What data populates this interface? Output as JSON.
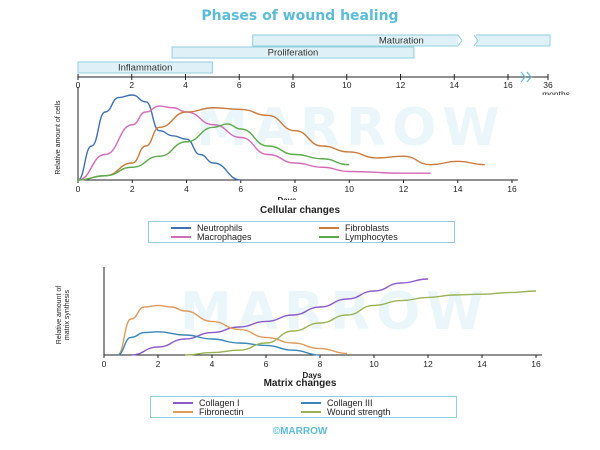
{
  "title": "Phases of wound healing",
  "watermark": "MARROW",
  "copyright": "©MARROW",
  "phases": [
    {
      "name": "Inflammation",
      "start_day": 0,
      "end_day": 5
    },
    {
      "name": "Proliferation",
      "start_day": 3.5,
      "end_day": 12.5
    },
    {
      "name": "Maturation",
      "start_day": 6.5,
      "end_day": "36 months"
    }
  ],
  "chart_data": [
    {
      "type": "line",
      "title": "Cellular changes",
      "xlabel": "Days",
      "ylabel": "Relative amount of cells",
      "xlim": [
        0,
        16
      ],
      "ylim": [
        0,
        100
      ],
      "xticks": [
        0,
        2,
        4,
        6,
        8,
        10,
        12,
        14,
        16
      ],
      "series": [
        {
          "name": "Neutrophils",
          "color": "#3e6fb0",
          "x": [
            0,
            0.5,
            1,
            1.5,
            2,
            2.5,
            3,
            3.5,
            4,
            4.5,
            5,
            6
          ],
          "y": [
            0,
            40,
            80,
            97,
            100,
            92,
            58,
            52,
            48,
            30,
            20,
            0
          ]
        },
        {
          "name": "Macrophages",
          "color": "#d46bb8",
          "x": [
            0,
            1,
            2,
            2.5,
            3,
            3.5,
            4,
            5,
            6,
            7,
            8,
            9,
            10,
            12,
            13
          ],
          "y": [
            0,
            30,
            65,
            80,
            87,
            85,
            80,
            65,
            50,
            30,
            20,
            15,
            10,
            8,
            8
          ]
        },
        {
          "name": "Fibroblasts",
          "color": "#cc7a3c",
          "x": [
            0,
            1,
            2,
            2.5,
            3,
            4,
            5,
            6,
            7,
            8,
            9,
            10,
            11,
            12,
            13,
            14,
            15
          ],
          "y": [
            0,
            5,
            20,
            40,
            62,
            80,
            85,
            83,
            76,
            58,
            40,
            33,
            26,
            28,
            18,
            22,
            18
          ]
        },
        {
          "name": "Lymphocytes",
          "color": "#5aaa4a",
          "x": [
            0,
            1,
            2,
            3,
            4,
            5,
            5.5,
            6,
            7,
            8,
            9,
            10
          ],
          "y": [
            0,
            5,
            15,
            28,
            45,
            62,
            66,
            60,
            40,
            30,
            25,
            18
          ]
        }
      ]
    },
    {
      "type": "line",
      "title": "Matrix changes",
      "xlabel": "Days",
      "ylabel": "Relative amount of matrix synthesis",
      "xlim": [
        0,
        16
      ],
      "ylim": [
        0,
        100
      ],
      "xticks": [
        0,
        2,
        4,
        6,
        8,
        10,
        12,
        14,
        16
      ],
      "series": [
        {
          "name": "Collagen I",
          "color": "#8a5ac8",
          "x": [
            1,
            2,
            3,
            4,
            5,
            6,
            7,
            8,
            9,
            10,
            11,
            12
          ],
          "y": [
            0,
            10,
            20,
            28,
            35,
            42,
            50,
            60,
            70,
            80,
            90,
            95
          ]
        },
        {
          "name": "Fibronectin",
          "color": "#e09a5a",
          "x": [
            0.5,
            1,
            1.5,
            2,
            2.5,
            3,
            4,
            5,
            6,
            7,
            8,
            9
          ],
          "y": [
            0,
            45,
            60,
            62,
            60,
            55,
            42,
            32,
            22,
            15,
            8,
            2
          ]
        },
        {
          "name": "Collagen III",
          "color": "#3a86b8",
          "x": [
            0.5,
            1,
            1.5,
            2,
            3,
            4,
            5,
            6,
            7,
            8
          ],
          "y": [
            0,
            22,
            28,
            29,
            25,
            20,
            15,
            12,
            6,
            0
          ]
        },
        {
          "name": "Wound strength",
          "color": "#9ab354",
          "x": [
            3,
            4,
            5,
            6,
            7,
            8,
            9,
            10,
            11,
            12,
            13,
            14,
            15,
            16
          ],
          "y": [
            0,
            3,
            6,
            15,
            30,
            40,
            50,
            62,
            68,
            72,
            75,
            76,
            78,
            80
          ]
        }
      ]
    }
  ],
  "legend1": [
    {
      "label": "Neutrophils",
      "series": "Neutrophils"
    },
    {
      "label": "Fibroblasts",
      "series": "Fibroblasts"
    },
    {
      "label": "Macrophages",
      "series": "Macrophages"
    },
    {
      "label": "Lymphocytes",
      "series": "Lymphocytes"
    }
  ],
  "legend2": [
    {
      "label": "Collagen I",
      "series": "Collagen I"
    },
    {
      "label": "Collagen III",
      "series": "Collagen III"
    },
    {
      "label": "Fibronectin",
      "series": "Fibronectin"
    },
    {
      "label": "Wound strength",
      "series": "Wound strength"
    }
  ],
  "top_axis": {
    "ticks": [
      "0",
      "2",
      "4",
      "6",
      "8",
      "10",
      "12",
      "14",
      "16"
    ],
    "end_label": "36",
    "end_unit": "months"
  }
}
